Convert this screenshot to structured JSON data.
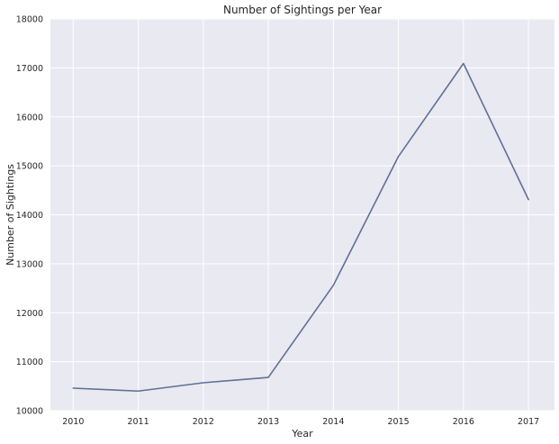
{
  "chart_data": {
    "type": "line",
    "title": "Number of Sightings per Year",
    "xlabel": "Year",
    "ylabel": "Number of Sightings",
    "x": [
      2010,
      2011,
      2012,
      2013,
      2014,
      2015,
      2016,
      2017
    ],
    "x_tick_labels": [
      "2010",
      "2011",
      "2012",
      "2013",
      "2014",
      "2015",
      "2016",
      "2017"
    ],
    "y_ticks": [
      10000,
      11000,
      12000,
      13000,
      14000,
      15000,
      16000,
      17000,
      18000
    ],
    "y_tick_labels": [
      "10000",
      "11000",
      "12000",
      "13000",
      "14000",
      "15000",
      "16000",
      "17000",
      "18000"
    ],
    "series": [
      {
        "values": [
          10460,
          10400,
          10570,
          10680,
          12560,
          15190,
          17090,
          14310
        ]
      }
    ],
    "xlim": [
      2009.65,
      2017.4
    ],
    "ylim": [
      10000,
      18000
    ],
    "grid": true,
    "legend": "none",
    "colors": {
      "plot_background": "#e9e9f2",
      "grid": "#ffffff",
      "line": "#5f7193",
      "text": "#262626"
    }
  }
}
